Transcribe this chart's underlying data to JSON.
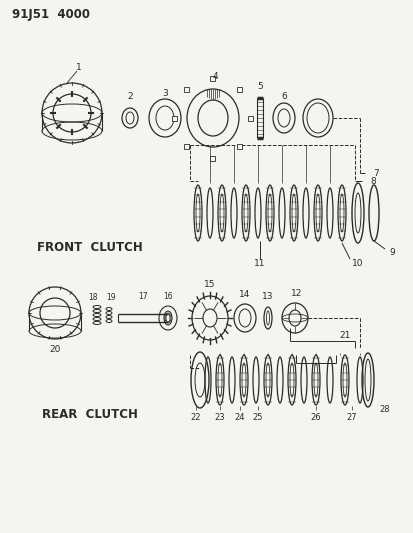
{
  "title": "91J51  4000",
  "background_color": "#f5f5f0",
  "line_color": "#2a2a2a",
  "front_clutch_label": "FRONT  CLUTCH",
  "rear_clutch_label": "REAR  CLUTCH",
  "fig_width": 4.14,
  "fig_height": 5.33,
  "dpi": 100
}
